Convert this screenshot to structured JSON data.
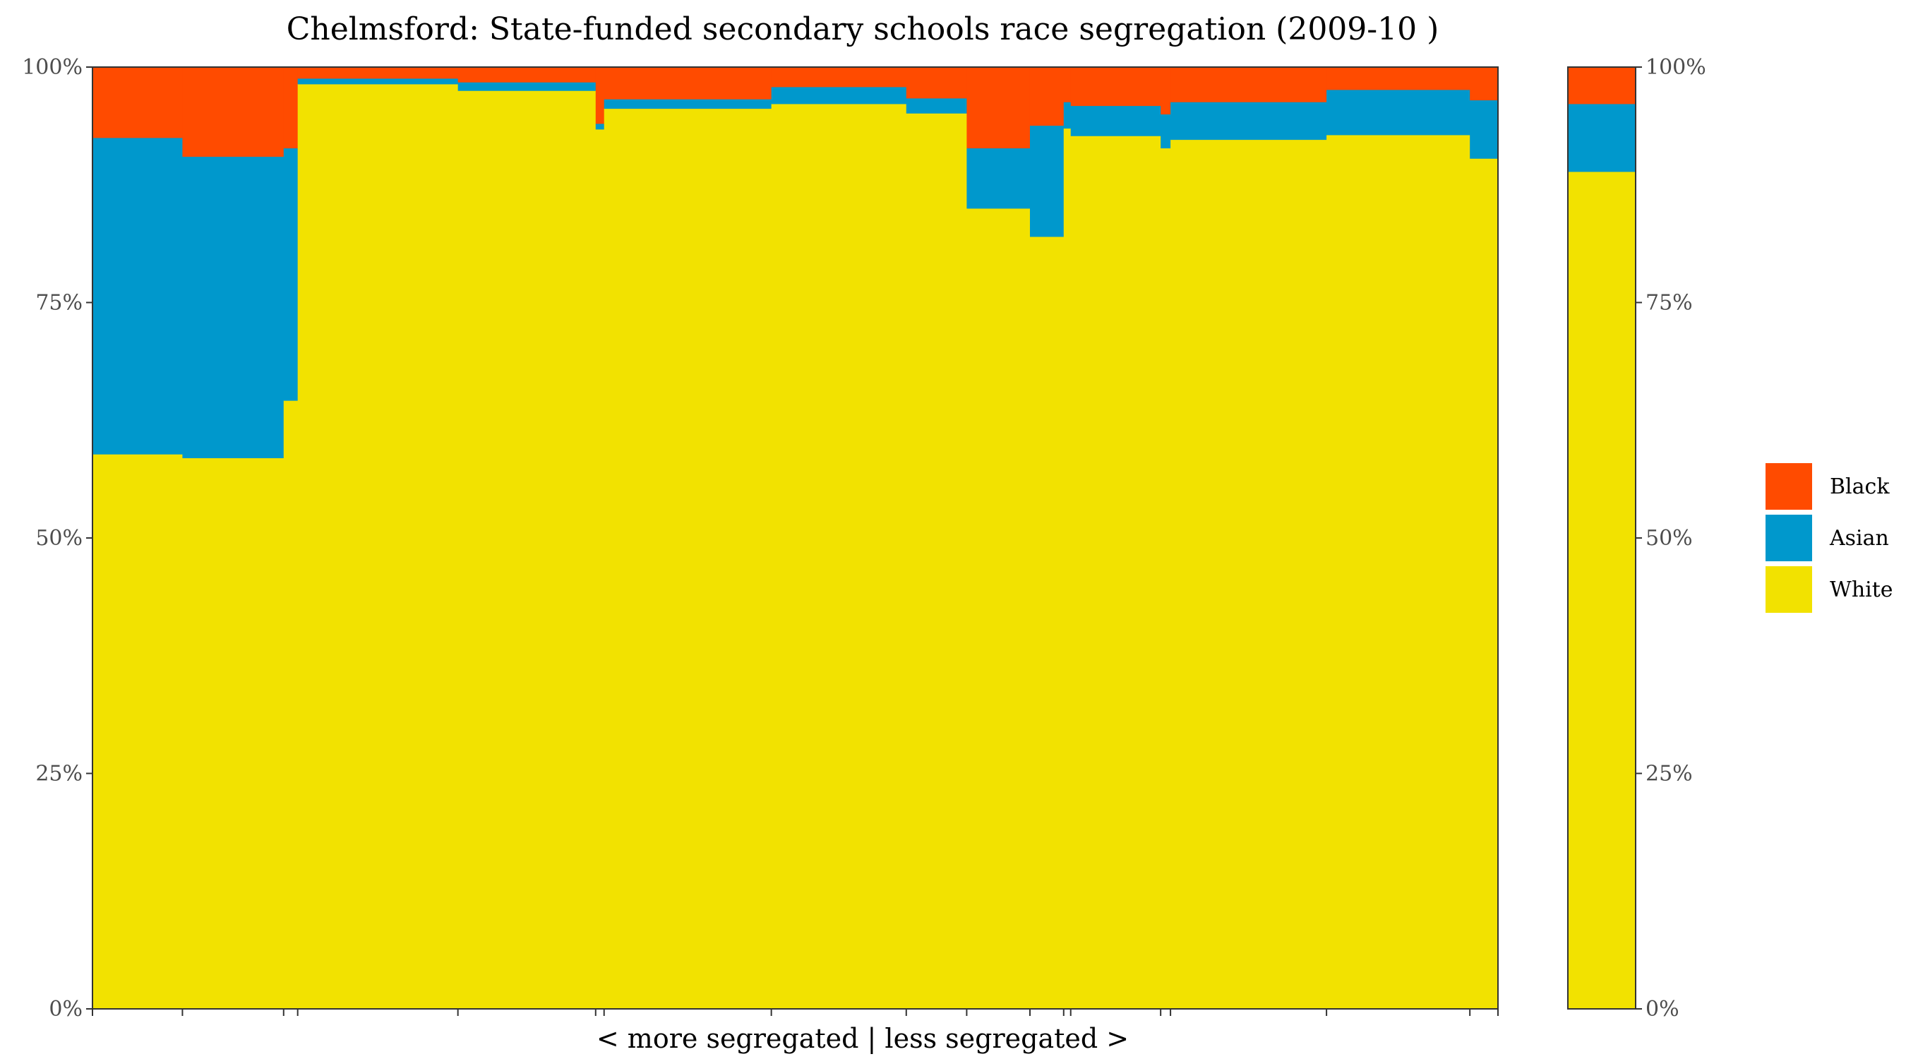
{
  "chart_data": {
    "type": "bar",
    "variant": "variable-width stacked percent (mosaic)",
    "title": "Chelmsford: State-funded secondary schools race segregation (2009-10 )",
    "xlabel": "< more segregated | less segregated >",
    "ylabel": "",
    "ylim": [
      0,
      1
    ],
    "y_ticks": [
      "0%",
      "25%",
      "50%",
      "75%",
      "100%"
    ],
    "y_tick_values": [
      0,
      0.25,
      0.5,
      0.75,
      1
    ],
    "y_axis_both_sides": true,
    "grid": false,
    "legend_position": "right",
    "series_order": [
      "Black",
      "Asian",
      "White"
    ],
    "colors": {
      "Black": "#FF4B00",
      "Asian": "#0098CC",
      "White": "#F2E200"
    },
    "schools": [
      {
        "start": 0.0,
        "end": 0.064,
        "White": 0.589,
        "Asian": 0.336,
        "Black": 0.075
      },
      {
        "start": 0.064,
        "end": 0.136,
        "White": 0.585,
        "Asian": 0.32,
        "Black": 0.095
      },
      {
        "start": 0.136,
        "end": 0.146,
        "White": 0.646,
        "Asian": 0.268,
        "Black": 0.086
      },
      {
        "start": 0.146,
        "end": 0.26,
        "White": 0.982,
        "Asian": 0.006,
        "Black": 0.012
      },
      {
        "start": 0.26,
        "end": 0.358,
        "White": 0.975,
        "Asian": 0.009,
        "Black": 0.016
      },
      {
        "start": 0.358,
        "end": 0.364,
        "White": 0.934,
        "Asian": 0.006,
        "Black": 0.06
      },
      {
        "start": 0.364,
        "end": 0.483,
        "White": 0.956,
        "Asian": 0.01,
        "Black": 0.034
      },
      {
        "start": 0.483,
        "end": 0.579,
        "White": 0.961,
        "Asian": 0.018,
        "Black": 0.021
      },
      {
        "start": 0.579,
        "end": 0.622,
        "White": 0.951,
        "Asian": 0.016,
        "Black": 0.033
      },
      {
        "start": 0.622,
        "end": 0.667,
        "White": 0.85,
        "Asian": 0.064,
        "Black": 0.086
      },
      {
        "start": 0.667,
        "end": 0.691,
        "White": 0.82,
        "Asian": 0.118,
        "Black": 0.062
      },
      {
        "start": 0.691,
        "end": 0.696,
        "White": 0.935,
        "Asian": 0.028,
        "Black": 0.037
      },
      {
        "start": 0.696,
        "end": 0.76,
        "White": 0.927,
        "Asian": 0.032,
        "Black": 0.041
      },
      {
        "start": 0.76,
        "end": 0.767,
        "White": 0.914,
        "Asian": 0.036,
        "Black": 0.05
      },
      {
        "start": 0.767,
        "end": 0.878,
        "White": 0.923,
        "Asian": 0.04,
        "Black": 0.037
      },
      {
        "start": 0.878,
        "end": 0.98,
        "White": 0.928,
        "Asian": 0.048,
        "Black": 0.024
      },
      {
        "start": 0.98,
        "end": 1.0,
        "White": 0.903,
        "Asian": 0.062,
        "Black": 0.035
      }
    ],
    "x_ticks": [
      0,
      0.064,
      0.136,
      0.146,
      0.26,
      0.358,
      0.364,
      0.483,
      0.579,
      0.622,
      0.667,
      0.691,
      0.696,
      0.76,
      0.767,
      0.878,
      0.98,
      1.0
    ],
    "overall": {
      "White": 0.889,
      "Asian": 0.072,
      "Black": 0.039
    }
  }
}
